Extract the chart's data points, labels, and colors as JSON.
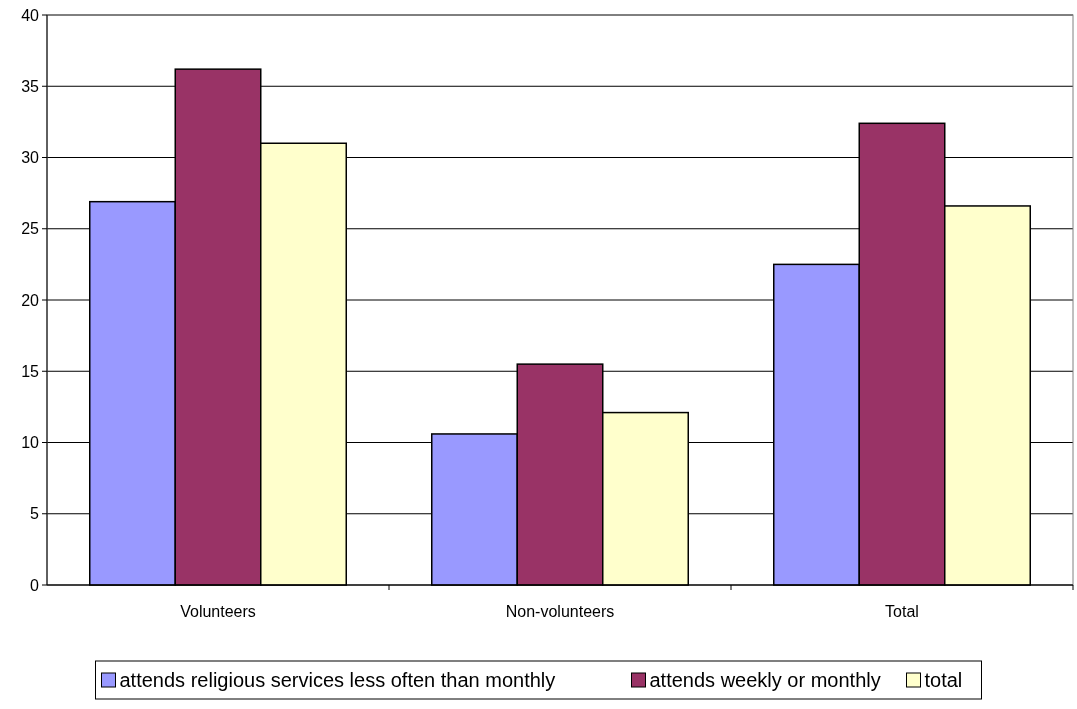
{
  "chart_data": {
    "type": "bar",
    "categories": [
      "Volunteers",
      "Non-volunteers",
      "Total"
    ],
    "series": [
      {
        "name": "attends religious services less often than monthly",
        "color": "#9999ff",
        "values": [
          26.9,
          10.6,
          22.5
        ]
      },
      {
        "name": "attends weekly or monthly",
        "color": "#993366",
        "values": [
          36.2,
          15.5,
          32.4
        ]
      },
      {
        "name": "total",
        "color": "#ffffcc",
        "values": [
          31.0,
          12.1,
          26.6
        ]
      }
    ],
    "ylim": [
      0,
      40
    ],
    "yticks": [
      0,
      5,
      10,
      15,
      20,
      25,
      30,
      35,
      40
    ],
    "grid": "y",
    "legend": "bottom"
  }
}
